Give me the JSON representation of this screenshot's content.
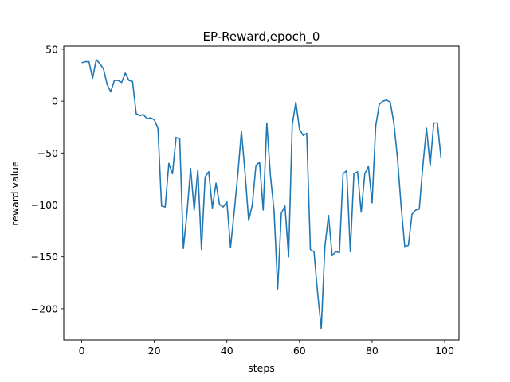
{
  "chart_data": {
    "type": "line",
    "title": "EP-Reward,epoch_0",
    "xlabel": "steps",
    "ylabel": "reward value",
    "xlim": [
      -4.95,
      103.95
    ],
    "ylim": [
      -230,
      53
    ],
    "xticks": [
      0,
      20,
      40,
      60,
      80,
      100
    ],
    "xtick_labels": [
      "0",
      "20",
      "40",
      "60",
      "80",
      "100"
    ],
    "yticks": [
      50,
      0,
      -50,
      -100,
      -150,
      -200
    ],
    "ytick_labels": [
      "50",
      "0",
      "−50",
      "−100",
      "−150",
      "−200"
    ],
    "grid": false,
    "series_color": "#1f77b4",
    "series": [
      {
        "x": [
          0,
          1,
          2,
          3,
          4,
          5,
          6,
          7,
          8,
          9,
          10,
          11,
          12,
          13,
          14,
          15,
          16,
          17,
          18,
          19,
          20,
          21,
          22,
          23,
          24,
          25,
          26,
          27,
          28,
          29,
          30,
          31,
          32,
          33,
          34,
          35,
          36,
          37,
          38,
          39,
          40,
          41,
          42,
          43,
          44,
          45,
          46,
          47,
          48,
          49,
          50,
          51,
          52,
          53,
          54,
          55,
          56,
          57,
          58,
          59,
          60,
          61,
          62,
          63,
          64,
          65,
          66,
          67,
          68,
          69,
          70,
          71,
          72,
          73,
          74,
          75,
          76,
          77,
          78,
          79,
          80,
          81,
          82,
          83,
          84,
          85,
          86,
          87,
          88,
          89,
          90,
          91,
          92,
          93,
          94,
          95,
          96,
          97,
          98,
          99
        ],
        "values": [
          37,
          38,
          38,
          22,
          40,
          36,
          31,
          16,
          9,
          20,
          20,
          18,
          27,
          20,
          19,
          -12,
          -14,
          -13,
          -17,
          -16,
          -18,
          -26,
          -101,
          -102,
          -60,
          -70,
          -35,
          -36,
          -142,
          -108,
          -65,
          -105,
          -66,
          -143,
          -73,
          -68,
          -103,
          -79,
          -100,
          -102,
          -97,
          -141,
          -107,
          -71,
          -29,
          -69,
          -115,
          -100,
          -62,
          -59,
          -105,
          -21,
          -72,
          -106,
          -181,
          -108,
          -101,
          -150,
          -23,
          -1,
          -27,
          -33,
          -31,
          -143,
          -145,
          -185,
          -219,
          -140,
          -110,
          -149,
          -145,
          -146,
          -70,
          -67,
          -145,
          -70,
          -68,
          -107,
          -70,
          -63,
          -98,
          -24,
          -3,
          0,
          1,
          -1,
          -21,
          -55,
          -101,
          -140,
          -139,
          -109,
          -105,
          -104,
          -62,
          -26,
          -62,
          -21,
          -21,
          -55
        ]
      }
    ]
  }
}
